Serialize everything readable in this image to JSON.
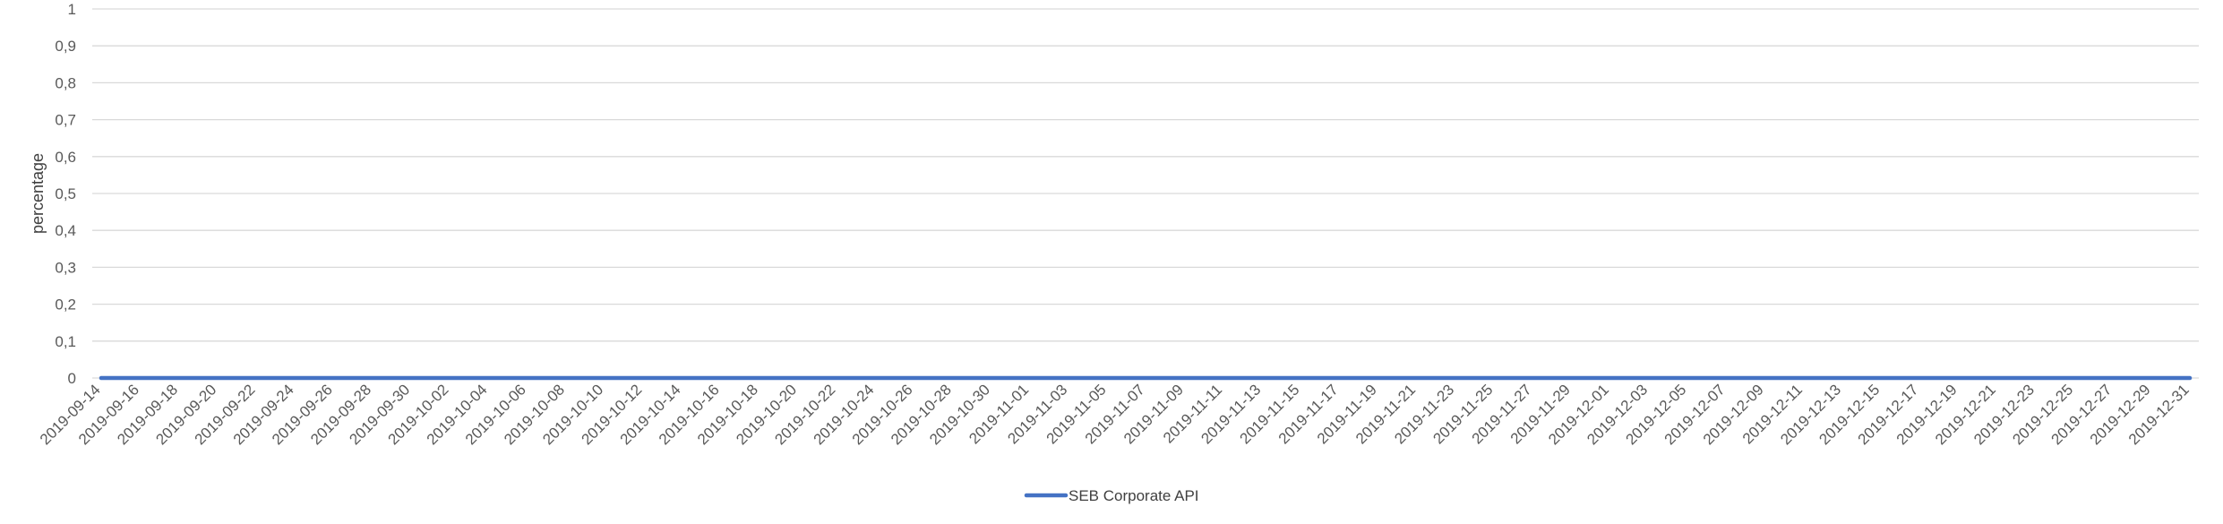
{
  "chart_data": {
    "type": "line",
    "title": "",
    "xlabel": "",
    "ylabel": "percentage",
    "ylim": [
      0,
      1
    ],
    "y_ticks": [
      "0",
      "0,1",
      "0,2",
      "0,3",
      "0,4",
      "0,5",
      "0,6",
      "0,7",
      "0,8",
      "0,9",
      "1"
    ],
    "x_tick_labels": [
      "2019-09-14",
      "2019-09-16",
      "2019-09-18",
      "2019-09-20",
      "2019-09-22",
      "2019-09-24",
      "2019-09-26",
      "2019-09-28",
      "2019-09-30",
      "2019-10-02",
      "2019-10-04",
      "2019-10-06",
      "2019-10-08",
      "2019-10-10",
      "2019-10-12",
      "2019-10-14",
      "2019-10-16",
      "2019-10-18",
      "2019-10-20",
      "2019-10-22",
      "2019-10-24",
      "2019-10-26",
      "2019-10-28",
      "2019-10-30",
      "2019-11-01",
      "2019-11-03",
      "2019-11-05",
      "2019-11-07",
      "2019-11-09",
      "2019-11-11",
      "2019-11-13",
      "2019-11-15",
      "2019-11-17",
      "2019-11-19",
      "2019-11-21",
      "2019-11-23",
      "2019-11-25",
      "2019-11-27",
      "2019-11-29",
      "2019-12-01",
      "2019-12-03",
      "2019-12-05",
      "2019-12-07",
      "2019-12-09",
      "2019-12-11",
      "2019-12-13",
      "2019-12-15",
      "2019-12-17",
      "2019-12-19",
      "2019-12-21",
      "2019-12-23",
      "2019-12-25",
      "2019-12-27",
      "2019-12-29",
      "2019-12-31"
    ],
    "x": [
      "2019-09-14",
      "2019-12-31"
    ],
    "grid": true,
    "legend_position": "bottom",
    "series": [
      {
        "name": "SEB Corporate API",
        "color": "#4472C4",
        "values": [
          0,
          0
        ]
      }
    ]
  }
}
